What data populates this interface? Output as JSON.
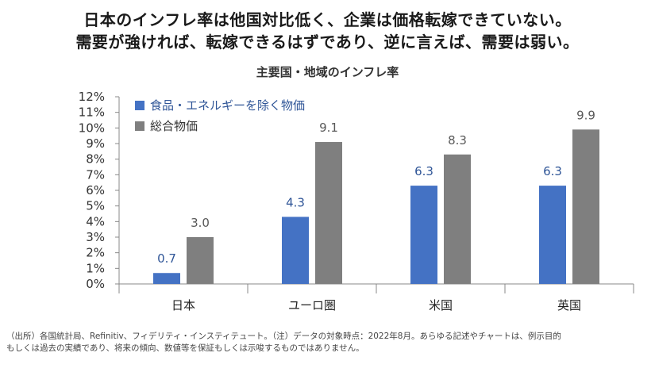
{
  "headline": {
    "line1": "日本のインフレ率は他国対比低く、企業は価格転嫁できていない。",
    "line2": "需要が強ければ、転嫁できるはずであり、逆に言えば、需要は弱い。"
  },
  "footnote": {
    "line1": "（出所）各国統計局、Refinitiv、フィデリティ・インスティテュート。（注）データの対象時点：2022年8月。あらゆる記述やチャートは、例示目的",
    "line2": "もしくは過去の実績であり、将来の傾向、数値等を保証もしくは示唆するものではありません。"
  },
  "colors": {
    "series1": "#4472C4",
    "series2": "#7F7F7F",
    "axis": "#888888",
    "label1": "#2F5597",
    "label2": "#595959"
  },
  "chart_data": {
    "type": "bar",
    "title": "主要国・地域のインフレ率",
    "categories": [
      "日本",
      "ユーロ圏",
      "米国",
      "英国"
    ],
    "series": [
      {
        "name": "食品・エネルギーを除く物価",
        "values": [
          0.7,
          4.3,
          6.3,
          6.3
        ],
        "value_labels": [
          "0.7",
          "4.3",
          "6.3",
          "6.3"
        ]
      },
      {
        "name": "総合物価",
        "values": [
          3.0,
          9.1,
          8.3,
          9.9
        ],
        "value_labels": [
          "3.0",
          "9.1",
          "8.3",
          "9.9"
        ]
      }
    ],
    "ylim": [
      0,
      12
    ],
    "yticks": [
      0,
      1,
      2,
      3,
      4,
      5,
      6,
      7,
      8,
      9,
      10,
      11,
      12
    ],
    "ytick_labels": [
      "0%",
      "1%",
      "2%",
      "3%",
      "4%",
      "5%",
      "6%",
      "7%",
      "8%",
      "9%",
      "10%",
      "11%",
      "12%"
    ],
    "legend_position": "top-left",
    "grid": false
  }
}
